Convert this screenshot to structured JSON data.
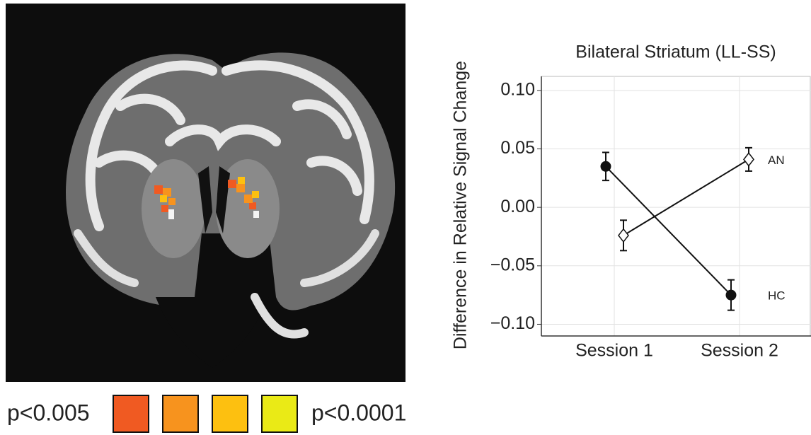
{
  "chart_data": {
    "type": "line",
    "title": "Bilateral Striatum (LL-SS)",
    "y_label": "Difference in Relative Signal Change",
    "categories": [
      "Session 1",
      "Session 2"
    ],
    "series": [
      {
        "name": "HC",
        "color": "#111111",
        "marker": "circle",
        "values": [
          0.035,
          -0.075
        ],
        "errors": [
          0.012,
          0.013
        ]
      },
      {
        "name": "AN",
        "color": "#111111",
        "marker": "diamond",
        "values": [
          -0.024,
          0.041
        ],
        "errors": [
          0.013,
          0.01
        ]
      }
    ],
    "ylim": [
      -0.11,
      0.112
    ],
    "yticks": [
      {
        "value": -0.1,
        "label": "−0.10"
      },
      {
        "value": -0.05,
        "label": "−0.05"
      },
      {
        "value": 0,
        "label": "0.00"
      },
      {
        "value": 0.05,
        "label": "0.05"
      },
      {
        "value": 0.1,
        "label": "0.10"
      }
    ],
    "grid": true
  },
  "colorbar": {
    "low_label": "p<0.005",
    "high_label": "p<0.0001",
    "colors": [
      "#f05a22",
      "#f7931e",
      "#fdc010",
      "#eaea16"
    ]
  }
}
